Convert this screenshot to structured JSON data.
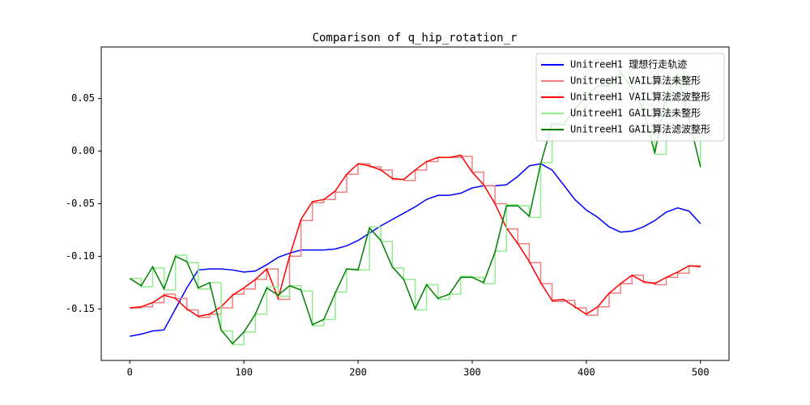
{
  "chart_data": {
    "type": "line",
    "title": "Comparison of q_hip_rotation_r",
    "x": [
      0,
      10,
      20,
      30,
      40,
      50,
      60,
      70,
      80,
      90,
      100,
      110,
      120,
      130,
      140,
      150,
      160,
      170,
      180,
      190,
      200,
      210,
      220,
      230,
      240,
      250,
      260,
      270,
      280,
      290,
      300,
      310,
      320,
      330,
      340,
      350,
      360,
      370,
      380,
      390,
      400,
      410,
      420,
      430,
      440,
      450,
      460,
      470,
      480,
      490,
      500
    ],
    "xlim": [
      -25,
      525
    ],
    "xticks": [
      0,
      100,
      200,
      300,
      400,
      500
    ],
    "ylim": [
      -0.199,
      0.099
    ],
    "yticks": [
      -0.15,
      {
        "value": -0.1,
        "label": "-0.10"
      },
      -0.05,
      {
        "value": 0,
        "label": "0.00"
      },
      0.05
    ],
    "legend": "upper right",
    "series": [
      {
        "name": "UnitreeH1 理想行走轨迹",
        "color": "#0000ff",
        "step": false,
        "values": [
          -0.176,
          -0.174,
          -0.171,
          -0.17,
          -0.15,
          -0.13,
          -0.113,
          -0.112,
          -0.112,
          -0.113,
          -0.115,
          -0.114,
          -0.108,
          -0.101,
          -0.097,
          -0.094,
          -0.094,
          -0.094,
          -0.093,
          -0.09,
          -0.085,
          -0.078,
          -0.071,
          -0.065,
          -0.059,
          -0.053,
          -0.046,
          -0.042,
          -0.042,
          -0.04,
          -0.035,
          -0.033,
          -0.033,
          -0.032,
          -0.024,
          -0.014,
          -0.012,
          -0.018,
          -0.032,
          -0.046,
          -0.056,
          -0.063,
          -0.072,
          -0.077,
          -0.076,
          -0.072,
          -0.066,
          -0.058,
          -0.054,
          -0.057,
          -0.069
        ]
      },
      {
        "name": "UnitreeH1 VAIL算法未整形",
        "color": "#f08080",
        "step": true,
        "values": [
          -0.149,
          -0.148,
          -0.144,
          -0.136,
          -0.14,
          -0.151,
          -0.158,
          -0.155,
          -0.149,
          -0.136,
          -0.131,
          -0.122,
          -0.112,
          -0.141,
          -0.1,
          -0.066,
          -0.049,
          -0.046,
          -0.039,
          -0.022,
          -0.012,
          -0.015,
          -0.018,
          -0.027,
          -0.028,
          -0.018,
          -0.01,
          -0.006,
          -0.006,
          -0.005,
          -0.02,
          -0.033,
          -0.05,
          -0.074,
          -0.088,
          -0.106,
          -0.126,
          -0.143,
          -0.142,
          -0.149,
          -0.156,
          -0.148,
          -0.135,
          -0.126,
          -0.118,
          -0.125,
          -0.127,
          -0.12,
          -0.116,
          -0.109,
          -0.11
        ]
      },
      {
        "name": "UnitreeH1 VAIL算法滤波整形",
        "color": "#ff0000",
        "step": false,
        "values": [
          -0.149,
          -0.148,
          -0.144,
          -0.137,
          -0.14,
          -0.15,
          -0.157,
          -0.155,
          -0.148,
          -0.137,
          -0.13,
          -0.122,
          -0.112,
          -0.14,
          -0.1,
          -0.065,
          -0.048,
          -0.046,
          -0.038,
          -0.022,
          -0.012,
          -0.014,
          -0.018,
          -0.026,
          -0.027,
          -0.018,
          -0.01,
          -0.006,
          -0.006,
          -0.004,
          -0.02,
          -0.032,
          -0.05,
          -0.073,
          -0.088,
          -0.105,
          -0.125,
          -0.142,
          -0.141,
          -0.148,
          -0.155,
          -0.148,
          -0.135,
          -0.126,
          -0.118,
          -0.124,
          -0.126,
          -0.12,
          -0.115,
          -0.109,
          -0.11
        ]
      },
      {
        "name": "UnitreeH1 GAIL算法未整形",
        "color": "#90ee90",
        "step": true,
        "values": [
          -0.121,
          -0.129,
          -0.111,
          -0.132,
          -0.099,
          -0.106,
          -0.131,
          -0.125,
          -0.171,
          -0.184,
          -0.172,
          -0.155,
          -0.129,
          -0.138,
          -0.128,
          -0.133,
          -0.166,
          -0.16,
          -0.134,
          -0.112,
          -0.113,
          -0.072,
          -0.086,
          -0.111,
          -0.122,
          -0.151,
          -0.127,
          -0.141,
          -0.136,
          -0.119,
          -0.12,
          -0.126,
          -0.095,
          -0.051,
          -0.052,
          -0.063,
          -0.011,
          0.027,
          0.025,
          0.041,
          0.053,
          0.062,
          0.062,
          0.076,
          0.06,
          0.04,
          -0.003,
          0.056,
          0.073,
          0.03,
          -0.016
        ]
      },
      {
        "name": "UnitreeH1 GAIL算法滤波整形",
        "color": "#008000",
        "step": false,
        "values": [
          -0.121,
          -0.128,
          -0.11,
          -0.131,
          -0.1,
          -0.105,
          -0.13,
          -0.125,
          -0.17,
          -0.183,
          -0.172,
          -0.155,
          -0.13,
          -0.137,
          -0.128,
          -0.132,
          -0.165,
          -0.16,
          -0.135,
          -0.112,
          -0.113,
          -0.073,
          -0.085,
          -0.11,
          -0.122,
          -0.15,
          -0.127,
          -0.14,
          -0.136,
          -0.12,
          -0.12,
          -0.125,
          -0.096,
          -0.052,
          -0.052,
          -0.062,
          -0.012,
          0.026,
          0.025,
          0.04,
          0.052,
          0.062,
          0.062,
          0.075,
          0.06,
          0.04,
          -0.002,
          0.055,
          0.072,
          0.03,
          -0.015
        ]
      }
    ]
  }
}
